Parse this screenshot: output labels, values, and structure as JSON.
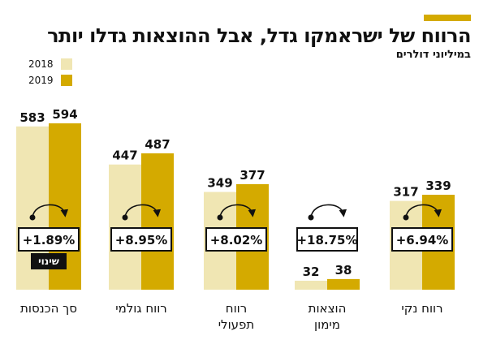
{
  "header": {
    "title": "הרווח של ישראמקו גדל, אבל ההוצאות גדלו יותר",
    "subtitle": "במיליוני דולרים"
  },
  "legend": [
    {
      "label": "2018",
      "color": "#f0e6b3"
    },
    {
      "label": "2019",
      "color": "#d4aa00"
    }
  ],
  "badge": {
    "label": "שינוי"
  },
  "colors": {
    "accent": "#d4aa00",
    "light": "#f0e6b3",
    "dark": "#d4aa00",
    "ink": "#111111"
  },
  "chart_data": {
    "type": "bar",
    "categories": [
      [
        "סך הכנסות"
      ],
      [
        "רווח גולמי"
      ],
      [
        "רווח",
        "תפעולי"
      ],
      [
        "הוצאות",
        "מימון"
      ],
      [
        "רווח נקי"
      ]
    ],
    "series": [
      {
        "name": "2018",
        "values": [
          583,
          447,
          349,
          32,
          317
        ]
      },
      {
        "name": "2019",
        "values": [
          594,
          487,
          377,
          38,
          339
        ]
      }
    ],
    "changes": [
      "+1.89%",
      "+8.95%",
      "+8.02%",
      "+18.75%",
      "+6.94%"
    ],
    "ylim": [
      0,
      594
    ],
    "legend": "top-left"
  }
}
